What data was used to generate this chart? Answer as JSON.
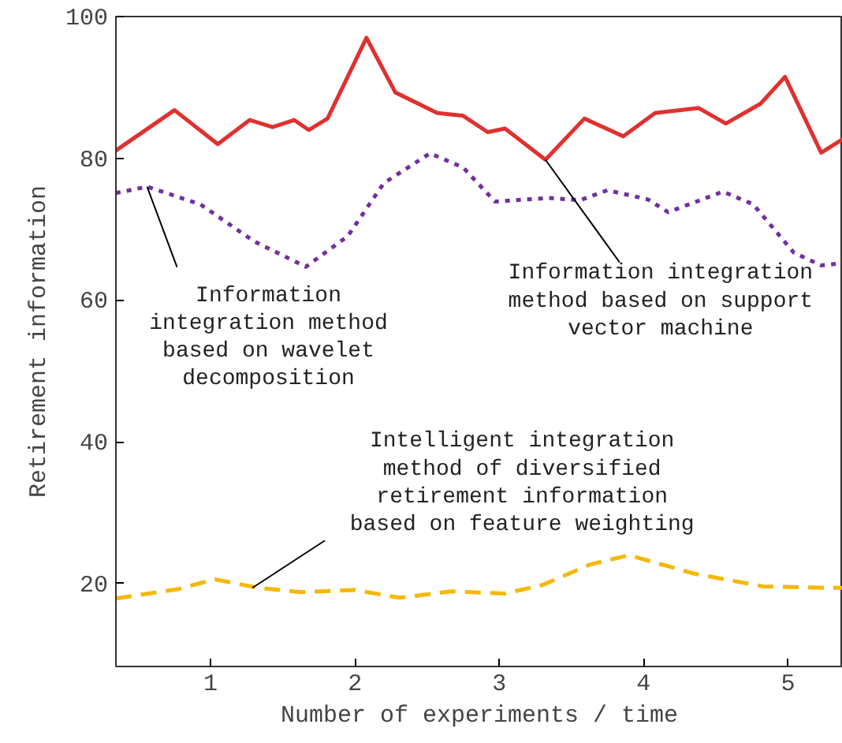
{
  "chart_data": {
    "type": "line",
    "xlabel": "Number of experiments / time",
    "ylabel": "Retirement information",
    "xlim": [
      0.344,
      5.38
    ],
    "ylim": [
      8.3,
      100
    ],
    "xticks": [
      1,
      2,
      3,
      4,
      5
    ],
    "yticks": [
      20,
      40,
      60,
      80,
      100
    ],
    "grid": false,
    "marker": "none",
    "series": [
      {
        "color": "#e03030",
        "line_style": "solid",
        "x": [
          0.344,
          0.75,
          1.05,
          1.27,
          1.43,
          1.58,
          1.68,
          1.81,
          2.08,
          2.28,
          2.57,
          2.75,
          2.92,
          3.04,
          3.32,
          3.59,
          3.86,
          4.08,
          4.38,
          4.57,
          4.81,
          4.98,
          5.23,
          5.38
        ],
        "values": [
          81.1,
          86.8,
          82.0,
          85.4,
          84.4,
          85.4,
          84.0,
          85.6,
          97.0,
          89.3,
          86.4,
          86.0,
          83.7,
          84.2,
          79.8,
          85.6,
          83.1,
          86.4,
          87.1,
          84.9,
          87.7,
          91.5,
          80.8,
          82.7
        ]
      },
      {
        "color": "#7030a0",
        "line_style": "dotted",
        "x": [
          0.344,
          0.56,
          0.93,
          1.3,
          1.66,
          1.95,
          2.2,
          2.52,
          2.75,
          2.97,
          3.34,
          3.56,
          3.75,
          4.03,
          4.17,
          4.55,
          4.76,
          5.04,
          5.23,
          5.38
        ],
        "values": [
          75.1,
          76.0,
          73.5,
          68.3,
          64.7,
          69.0,
          76.5,
          80.7,
          78.7,
          73.9,
          74.4,
          74.1,
          75.5,
          74.2,
          72.4,
          75.3,
          73.5,
          66.7,
          64.9,
          65.2
        ]
      },
      {
        "color": "#f5b800",
        "line_style": "dashed",
        "x": [
          0.344,
          0.77,
          1.03,
          1.33,
          1.62,
          2.0,
          2.31,
          2.67,
          3.04,
          3.3,
          3.63,
          3.9,
          4.35,
          4.83,
          5.27,
          5.38
        ],
        "values": [
          17.9,
          19.2,
          20.6,
          19.4,
          18.8,
          19.1,
          18.0,
          18.9,
          18.6,
          19.8,
          22.7,
          24.0,
          21.4,
          19.6,
          19.4,
          19.4
        ]
      }
    ],
    "annotations": [
      {
        "text": "Information\nintegration method\nbased on wavelet\ndecomposition",
        "x": 0.56,
        "y": 76.0
      },
      {
        "text": "Information integration\nmethod based on support\nvector machine",
        "x": 3.32,
        "y": 79.8
      },
      {
        "text": "Intelligent integration\nmethod of diversified\nretirement information\nbased on feature weighting",
        "x": 1.29,
        "y": 19.4
      }
    ]
  }
}
